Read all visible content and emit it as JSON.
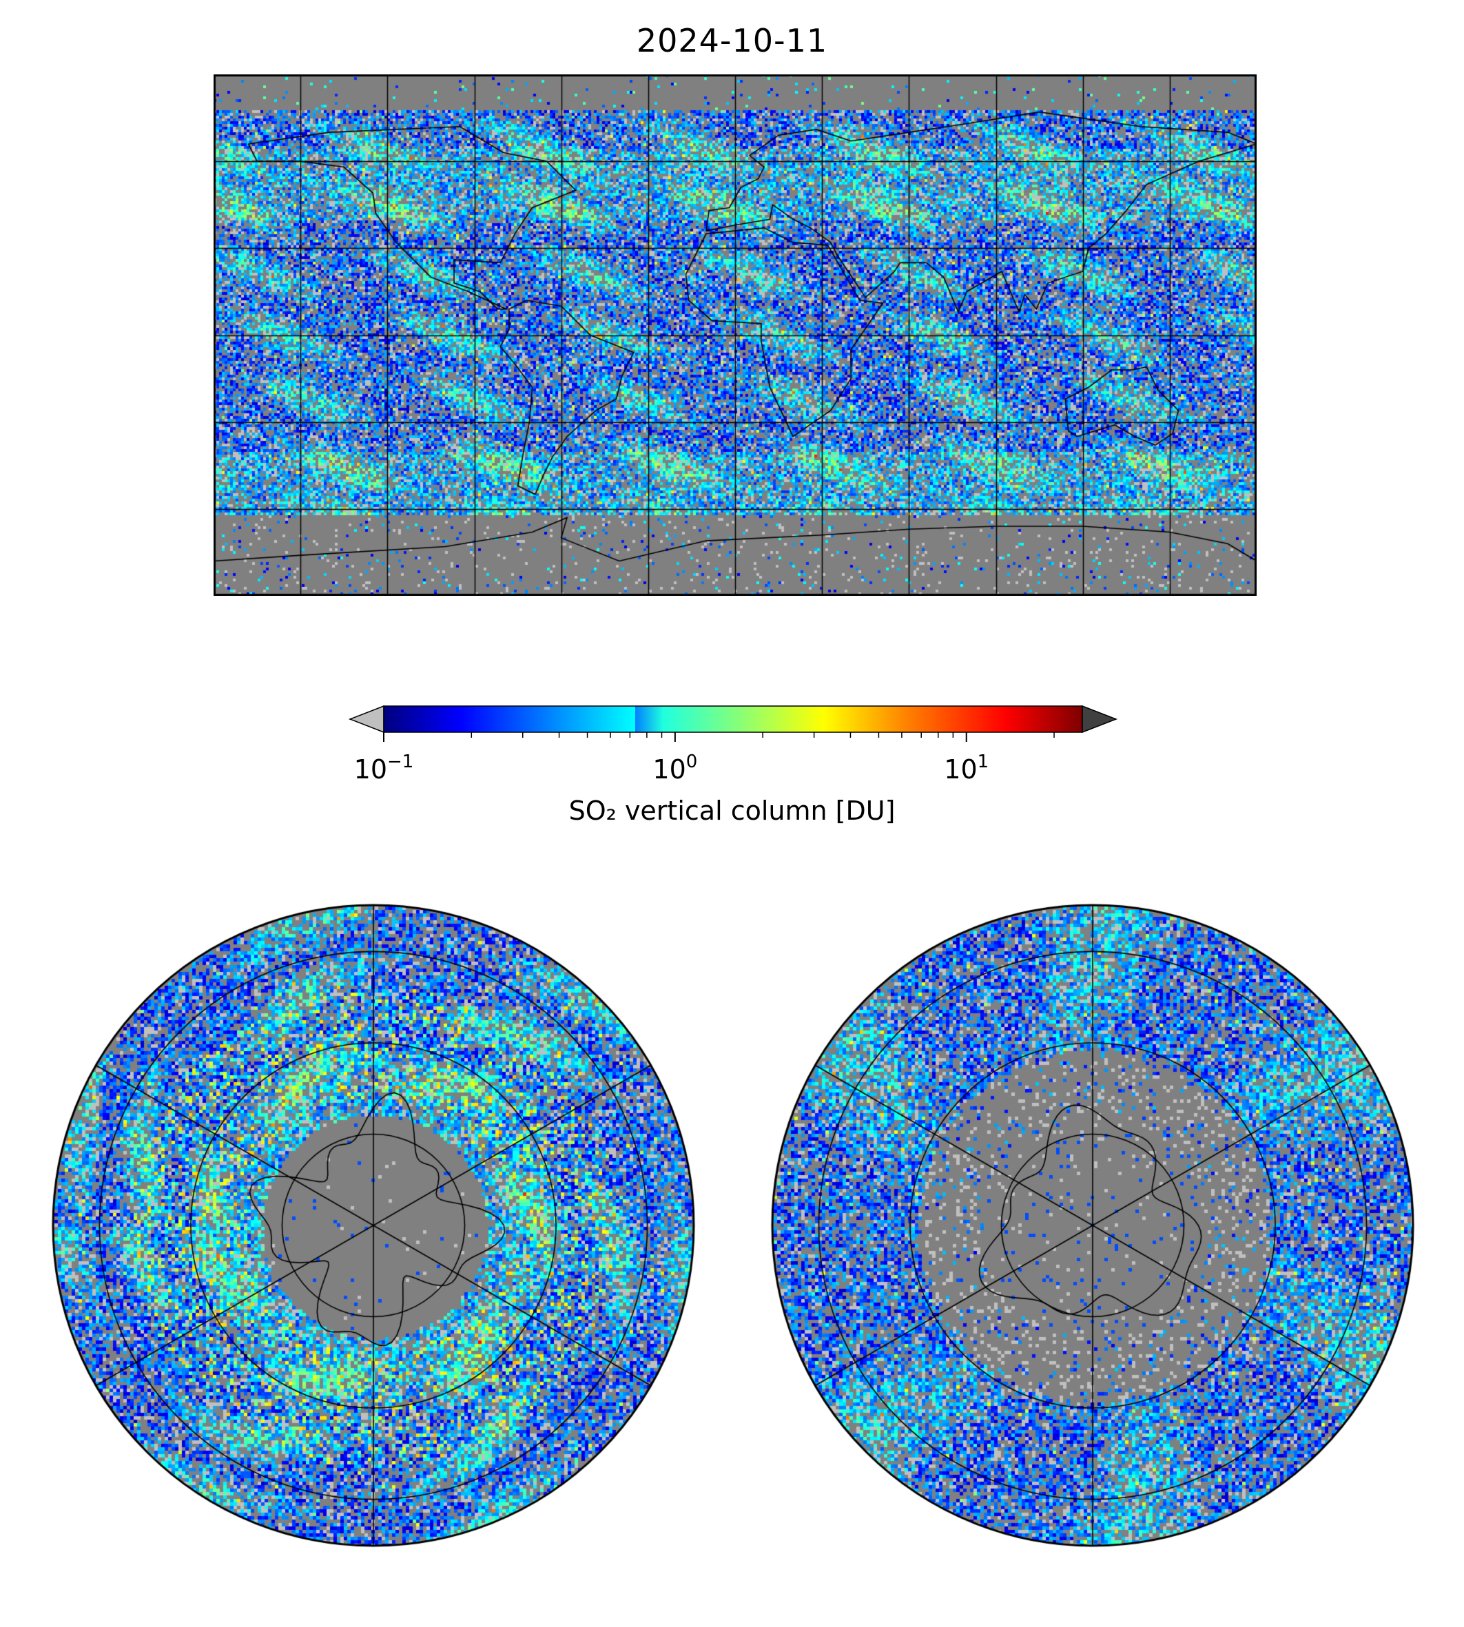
{
  "title": "2024-10-11",
  "colorbar": {
    "label": "SO₂ vertical column [DU]",
    "scale": "log",
    "range_du": [
      0.1,
      25
    ],
    "colormap": "jet",
    "under_color": "#bfbfbf",
    "over_color": "#404040",
    "ticks": [
      {
        "base": "10",
        "exp": "−1",
        "value": 0.1
      },
      {
        "base": "10",
        "exp": "0",
        "value": 1
      },
      {
        "base": "10",
        "exp": "1",
        "value": 10
      }
    ]
  },
  "maps": {
    "global": {
      "projection": "plate-carree",
      "graticule_lon_step_deg": 30,
      "graticule_lat_step_deg": 30,
      "no_data_color": "#808080"
    },
    "north": {
      "projection": "north-polar-stereographic",
      "graticule_lat_circles_deg": [
        80,
        60,
        40,
        20
      ],
      "no_data_color": "#808080"
    },
    "south": {
      "projection": "south-polar-stereographic",
      "graticule_lat_circles_deg": [
        -80,
        -60,
        -40,
        -20
      ],
      "no_data_color": "#808080"
    }
  }
}
